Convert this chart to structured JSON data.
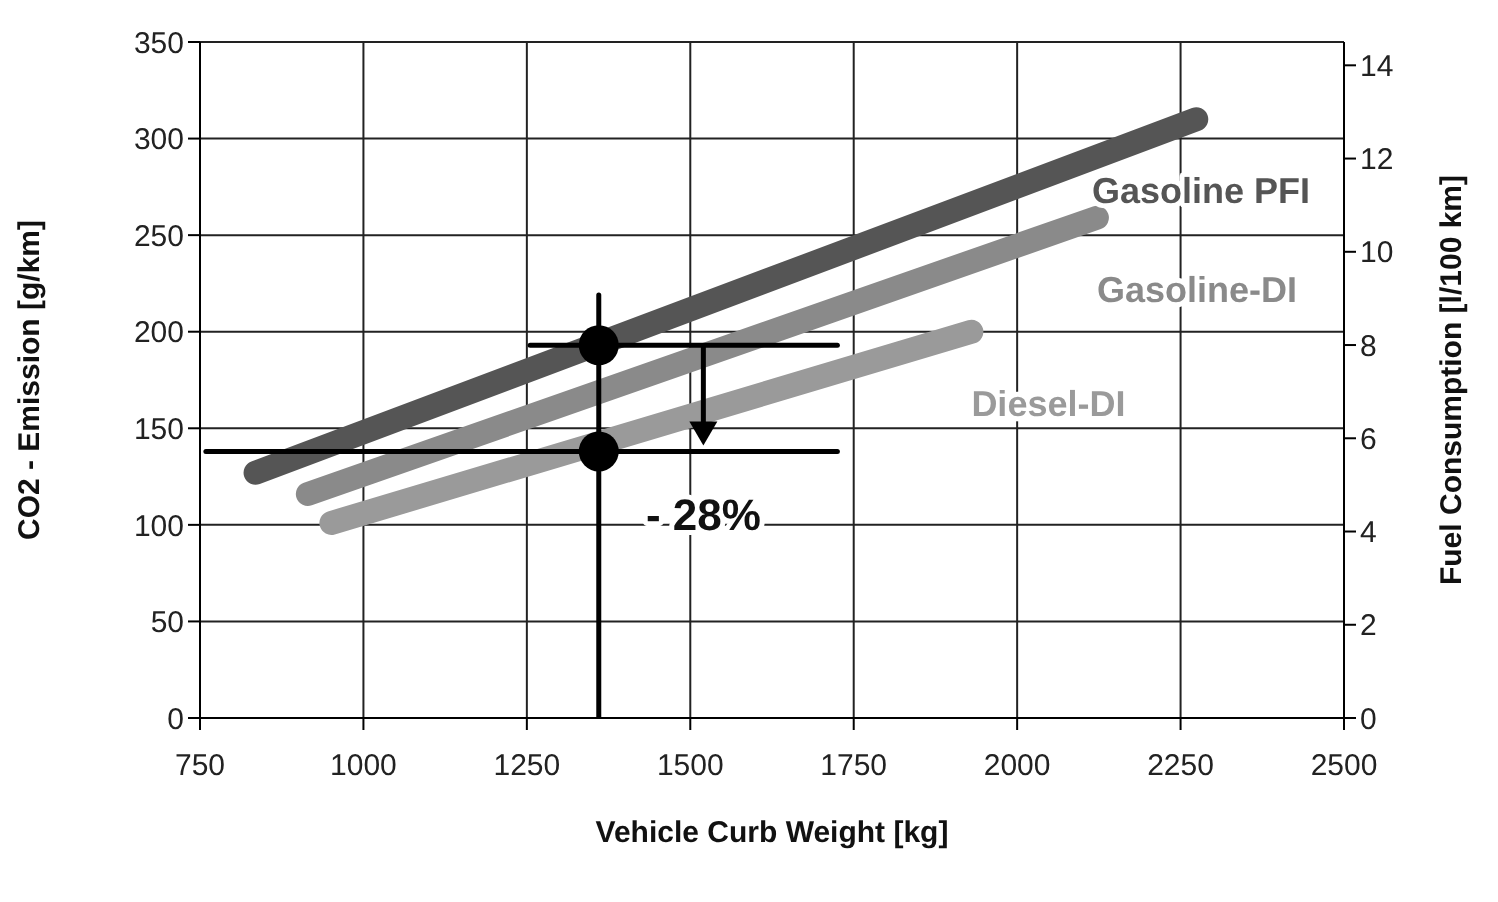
{
  "chart_data": {
    "type": "line",
    "xlabel": "Vehicle Curb Weight [kg]",
    "ylabel": "CO2 - Emission [g/km]",
    "y2label": "Fuel Consumption [l/100 km]",
    "xlim": [
      750,
      2500
    ],
    "xticks": [
      750,
      1000,
      1250,
      1500,
      1750,
      2000,
      2250,
      2500
    ],
    "ylim": [
      0,
      350
    ],
    "yticks": [
      0,
      50,
      100,
      150,
      200,
      250,
      300,
      350
    ],
    "y2lim": [
      0,
      14.5
    ],
    "y2ticks": [
      0,
      2,
      4,
      6,
      8,
      10,
      12,
      14
    ],
    "grid": true,
    "series": [
      {
        "name": "Gasoline PFI",
        "color": "#555555",
        "x": [
          835,
          2274
        ],
        "values": [
          127,
          310
        ]
      },
      {
        "name": "Gasoline-DI",
        "color": "#8a8a8a",
        "x": [
          915,
          2122
        ],
        "values": [
          116,
          259
        ]
      },
      {
        "name": "Diesel-DI",
        "color": "#9a9a9a",
        "x": [
          951,
          1930
        ],
        "values": [
          101,
          200
        ]
      },
      {
        "color": "#000000",
        "x": [
          1360,
          1360
        ],
        "values": [
          0,
          219
        ]
      },
      {
        "color": "#000000",
        "x": [
          1255,
          1725
        ],
        "values": [
          193,
          193
        ]
      },
      {
        "color": "#000000",
        "x": [
          759,
          1725
        ],
        "values": [
          138,
          138
        ]
      },
      {
        "type": "scatter",
        "color": "#000000",
        "marker": "circle",
        "x": [
          1360,
          1360
        ],
        "values": [
          193,
          138
        ]
      }
    ],
    "annotations": [
      "- 28%"
    ]
  }
}
